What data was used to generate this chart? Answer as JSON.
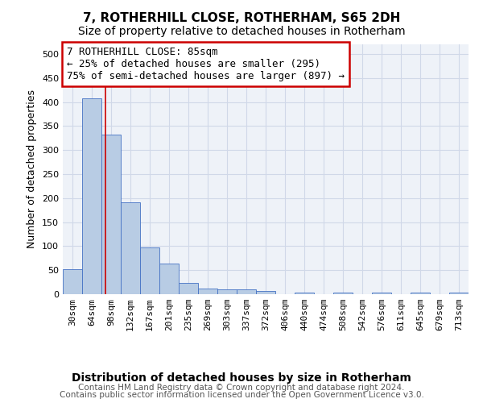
{
  "title": "7, ROTHERHILL CLOSE, ROTHERHAM, S65 2DH",
  "subtitle": "Size of property relative to detached houses in Rotherham",
  "xlabel": "Distribution of detached houses by size in Rotherham",
  "ylabel": "Number of detached properties",
  "bar_labels": [
    "30sqm",
    "64sqm",
    "98sqm",
    "132sqm",
    "167sqm",
    "201sqm",
    "235sqm",
    "269sqm",
    "303sqm",
    "337sqm",
    "372sqm",
    "406sqm",
    "440sqm",
    "474sqm",
    "508sqm",
    "542sqm",
    "576sqm",
    "611sqm",
    "645sqm",
    "679sqm",
    "713sqm"
  ],
  "bar_values": [
    52,
    407,
    332,
    192,
    97,
    63,
    24,
    12,
    10,
    10,
    6,
    0,
    4,
    0,
    3,
    0,
    3,
    0,
    3,
    0,
    3
  ],
  "bar_color": "#b8cce4",
  "bar_edge_color": "#4472c4",
  "property_line_x": 1.72,
  "annotation_line1": "7 ROTHERHILL CLOSE: 85sqm",
  "annotation_line2": "← 25% of detached houses are smaller (295)",
  "annotation_line3": "75% of semi-detached houses are larger (897) →",
  "annotation_box_color": "#ffffff",
  "annotation_box_edge": "#cc0000",
  "vline_color": "#cc0000",
  "ylim": [
    0,
    520
  ],
  "yticks": [
    0,
    50,
    100,
    150,
    200,
    250,
    300,
    350,
    400,
    450,
    500
  ],
  "footer_line1": "Contains HM Land Registry data © Crown copyright and database right 2024.",
  "footer_line2": "Contains public sector information licensed under the Open Government Licence v3.0.",
  "title_fontsize": 11,
  "subtitle_fontsize": 10,
  "ylabel_fontsize": 9,
  "xlabel_fontsize": 10,
  "tick_fontsize": 8,
  "annotation_fontsize": 9,
  "footer_fontsize": 7.5,
  "grid_color": "#d0d8e8",
  "background_color": "#eef2f8"
}
